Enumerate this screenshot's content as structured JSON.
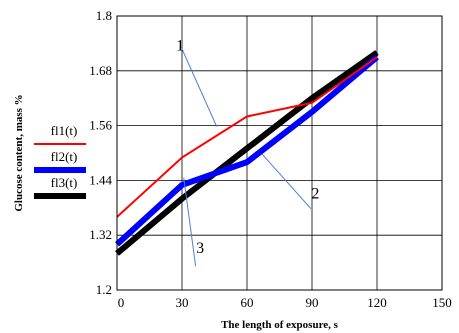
{
  "chart_data": {
    "type": "line",
    "xlabel": "The length of exposure, s",
    "ylabel": "Glucose content, mass %",
    "xlim": [
      0,
      150
    ],
    "ylim": [
      1.2,
      1.8
    ],
    "x_ticks": [
      "0",
      "30",
      "60",
      "90",
      "120",
      "150"
    ],
    "y_ticks": [
      "1.2",
      "1.32",
      "1.44",
      "1.56",
      "1.68",
      "1.8"
    ],
    "grid": true,
    "legend_position": "left",
    "series": [
      {
        "name": "fl1(t)",
        "callout": "1",
        "color": "#ff0000",
        "x": [
          0,
          30,
          60,
          90,
          120
        ],
        "y": [
          1.36,
          1.49,
          1.58,
          1.61,
          1.71
        ]
      },
      {
        "name": "fl2(t)",
        "callout": "2",
        "color": "#0000ff",
        "x": [
          0,
          30,
          60,
          90,
          120
        ],
        "y": [
          1.3,
          1.43,
          1.48,
          1.59,
          1.71
        ]
      },
      {
        "name": "fl3(t)",
        "callout": "3",
        "color": "#000000",
        "x": [
          0,
          30,
          60,
          90,
          120
        ],
        "y": [
          1.28,
          1.4,
          1.51,
          1.62,
          1.72
        ]
      }
    ]
  }
}
